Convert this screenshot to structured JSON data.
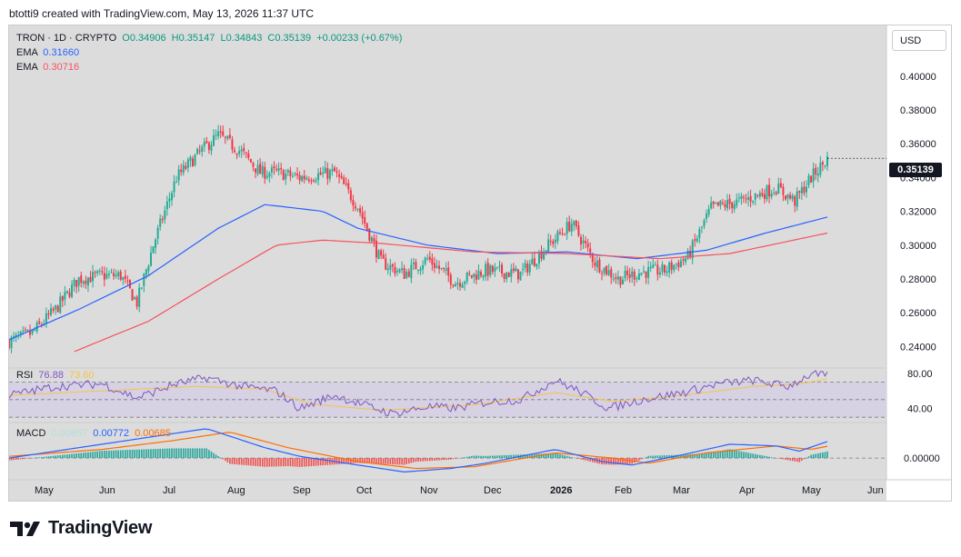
{
  "header": {
    "text": "btotti9 created with TradingView.com, May 13, 2026 11:37 UTC"
  },
  "legend": {
    "symbol": "TRON · 1D · CRYPTO",
    "open": "O0.34906",
    "high": "H0.35147",
    "low": "L0.34843",
    "close": "C0.35139",
    "change": "+0.00233 (+0.67%)",
    "ema1_label": "EMA",
    "ema1_value": "0.31660",
    "ema2_label": "EMA",
    "ema2_value": "0.30716"
  },
  "rsi_legend": {
    "label": "RSI",
    "value1": "76.88",
    "value2": "73.60"
  },
  "macd_legend": {
    "label": "MACD",
    "value1": "0.00957",
    "value2": "0.00772",
    "value3": "0.00685"
  },
  "currency": "USD",
  "last_price_label": "0.35139",
  "brand": {
    "name": "TradingView"
  },
  "colors": {
    "up": "#22ab94",
    "down": "#f23645",
    "ema_fast": "#2962ff",
    "ema_slow": "#f7525f",
    "rsi": "#7e57c2",
    "rsi_ma": "#f5c542",
    "macd": "#2962ff",
    "signal": "#ff6d00"
  },
  "chart_data": {
    "type": "candlestick",
    "price_axis": {
      "ticks": [
        0.24,
        0.26,
        0.28,
        0.3,
        0.32,
        0.34,
        0.36,
        0.38,
        0.4,
        0.42
      ],
      "range": [
        0.23,
        0.43
      ]
    },
    "rsi_axis": {
      "ticks": [
        40,
        80
      ],
      "range": [
        25,
        85
      ],
      "bands": [
        30,
        50,
        70
      ]
    },
    "macd_axis": {
      "ticks": [
        0.0
      ]
    },
    "time_axis": [
      "May",
      "Jun",
      "Jul",
      "Aug",
      "Sep",
      "Oct",
      "Nov",
      "Dec",
      "2026",
      "Feb",
      "Mar",
      "Apr",
      "May",
      "Jun"
    ],
    "close_path": [
      [
        0,
        0.243
      ],
      [
        10,
        0.248
      ],
      [
        20,
        0.262
      ],
      [
        30,
        0.28
      ],
      [
        40,
        0.282
      ],
      [
        48,
        0.282
      ],
      [
        55,
        0.266
      ],
      [
        62,
        0.3
      ],
      [
        72,
        0.34
      ],
      [
        82,
        0.355
      ],
      [
        90,
        0.365
      ],
      [
        100,
        0.355
      ],
      [
        108,
        0.343
      ],
      [
        115,
        0.343
      ],
      [
        125,
        0.34
      ],
      [
        140,
        0.343
      ],
      [
        150,
        0.323
      ],
      [
        160,
        0.29
      ],
      [
        170,
        0.283
      ],
      [
        180,
        0.292
      ],
      [
        192,
        0.278
      ],
      [
        205,
        0.285
      ],
      [
        220,
        0.283
      ],
      [
        232,
        0.3
      ],
      [
        242,
        0.313
      ],
      [
        252,
        0.29
      ],
      [
        262,
        0.28
      ],
      [
        272,
        0.284
      ],
      [
        282,
        0.285
      ],
      [
        292,
        0.293
      ],
      [
        302,
        0.322
      ],
      [
        315,
        0.326
      ],
      [
        330,
        0.334
      ],
      [
        338,
        0.326
      ],
      [
        345,
        0.34
      ],
      [
        352,
        0.351
      ]
    ],
    "ema_fast_path": [
      [
        0,
        0.244
      ],
      [
        30,
        0.262
      ],
      [
        60,
        0.282
      ],
      [
        90,
        0.31
      ],
      [
        110,
        0.324
      ],
      [
        135,
        0.32
      ],
      [
        150,
        0.31
      ],
      [
        180,
        0.3
      ],
      [
        210,
        0.295
      ],
      [
        240,
        0.296
      ],
      [
        270,
        0.292
      ],
      [
        300,
        0.297
      ],
      [
        325,
        0.307
      ],
      [
        352,
        0.3166
      ]
    ],
    "ema_slow_path": [
      [
        28,
        0.237
      ],
      [
        60,
        0.255
      ],
      [
        90,
        0.28
      ],
      [
        115,
        0.3
      ],
      [
        135,
        0.303
      ],
      [
        160,
        0.301
      ],
      [
        200,
        0.296
      ],
      [
        240,
        0.295
      ],
      [
        280,
        0.292
      ],
      [
        310,
        0.295
      ],
      [
        352,
        0.30716
      ]
    ],
    "rsi_path": [
      [
        0,
        55
      ],
      [
        20,
        65
      ],
      [
        40,
        68
      ],
      [
        55,
        52
      ],
      [
        72,
        68
      ],
      [
        85,
        75
      ],
      [
        100,
        65
      ],
      [
        115,
        60
      ],
      [
        125,
        40
      ],
      [
        140,
        55
      ],
      [
        155,
        42
      ],
      [
        165,
        34
      ],
      [
        180,
        42
      ],
      [
        192,
        40
      ],
      [
        205,
        47
      ],
      [
        220,
        50
      ],
      [
        235,
        72
      ],
      [
        245,
        60
      ],
      [
        258,
        40
      ],
      [
        272,
        50
      ],
      [
        290,
        58
      ],
      [
        305,
        68
      ],
      [
        320,
        72
      ],
      [
        335,
        65
      ],
      [
        345,
        79
      ],
      [
        352,
        76.88
      ]
    ],
    "rsi_ma_path": [
      [
        0,
        55
      ],
      [
        40,
        60
      ],
      [
        80,
        65
      ],
      [
        110,
        62
      ],
      [
        130,
        45
      ],
      [
        160,
        38
      ],
      [
        200,
        44
      ],
      [
        235,
        58
      ],
      [
        260,
        48
      ],
      [
        290,
        55
      ],
      [
        320,
        65
      ],
      [
        340,
        68
      ],
      [
        352,
        73.6
      ]
    ],
    "macd_path": [
      [
        0,
        0.0
      ],
      [
        30,
        0.006
      ],
      [
        60,
        0.012
      ],
      [
        85,
        0.017
      ],
      [
        110,
        0.006
      ],
      [
        125,
        0.001
      ],
      [
        150,
        -0.004
      ],
      [
        170,
        -0.008
      ],
      [
        190,
        -0.006
      ],
      [
        205,
        -0.003
      ],
      [
        235,
        0.005
      ],
      [
        255,
        -0.002
      ],
      [
        268,
        -0.004
      ],
      [
        290,
        0.002
      ],
      [
        310,
        0.008
      ],
      [
        330,
        0.007
      ],
      [
        340,
        0.004
      ],
      [
        352,
        0.00957
      ]
    ],
    "signal_path": [
      [
        0,
        0.001
      ],
      [
        40,
        0.005
      ],
      [
        70,
        0.01
      ],
      [
        95,
        0.015
      ],
      [
        120,
        0.006
      ],
      [
        150,
        -0.002
      ],
      [
        175,
        -0.006
      ],
      [
        200,
        -0.005
      ],
      [
        235,
        0.003
      ],
      [
        260,
        0.0
      ],
      [
        275,
        -0.003
      ],
      [
        300,
        0.003
      ],
      [
        330,
        0.007
      ],
      [
        345,
        0.005
      ],
      [
        352,
        0.00685
      ]
    ]
  }
}
